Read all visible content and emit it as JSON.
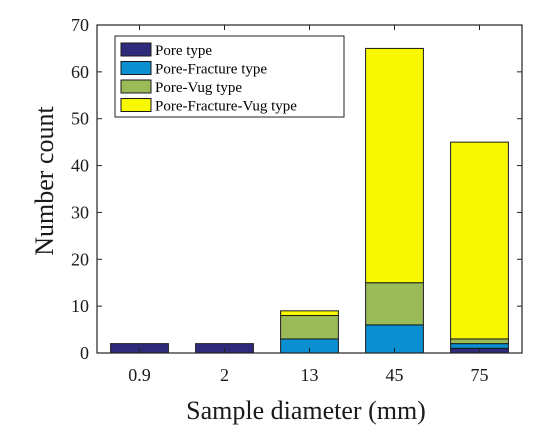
{
  "chart_data": {
    "type": "bar",
    "stacked": true,
    "categories": [
      "0.9",
      "2",
      "13",
      "45",
      "75"
    ],
    "xlabel": "Sample diameter (mm)",
    "ylabel": "Number count",
    "ylim": [
      0,
      70
    ],
    "yticks": [
      0,
      10,
      20,
      30,
      40,
      50,
      60,
      70
    ],
    "grid": false,
    "legend_position": "top-left",
    "series": [
      {
        "name": "Pore type",
        "color": "#2e2a7c",
        "values": [
          2,
          2,
          0,
          0,
          1
        ]
      },
      {
        "name": "Pore-Fracture type",
        "color": "#0a8fd0",
        "values": [
          0,
          0,
          3,
          6,
          1
        ]
      },
      {
        "name": "Pore-Vug type",
        "color": "#9bbb59",
        "values": [
          0,
          0,
          5,
          9,
          1
        ]
      },
      {
        "name": "Pore-Fracture-Vug type",
        "color": "#f8f800",
        "values": [
          0,
          0,
          1,
          50,
          42
        ]
      }
    ]
  }
}
